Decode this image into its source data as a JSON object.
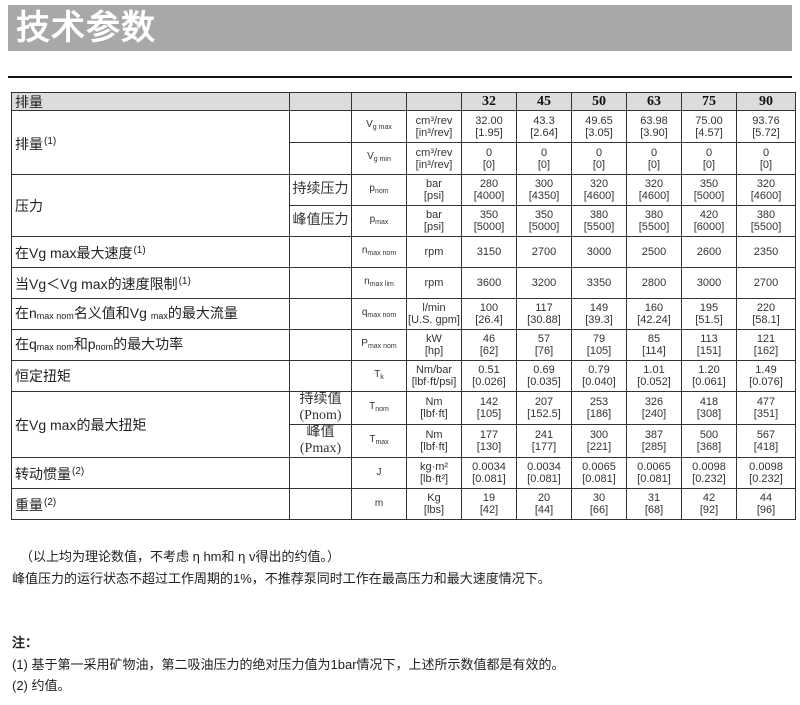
{
  "title": "技术参数",
  "table": {
    "header": {
      "label": "排量",
      "sizes": [
        "32",
        "45",
        "50",
        "63",
        "75",
        "90"
      ]
    },
    "groups": [
      {
        "label": [
          {
            "t": "排量"
          }
        ],
        "ref": "(1)",
        "rows": [
          {
            "sub": "",
            "sym": {
              "m": "V",
              "s": "g max"
            },
            "unit": [
              "cm³/rev",
              "[in³/rev]"
            ],
            "values": [
              "32.00\n[1.95]",
              "43.3\n[2.64]",
              "49.65\n[3.05]",
              "63.98\n[3.90]",
              "75.00\n[4.57]",
              "93.76\n[5.72]"
            ]
          },
          {
            "sub": "",
            "sym": {
              "m": "V",
              "s": "g min"
            },
            "unit": [
              "cm³/rev",
              "[in³/rev]"
            ],
            "values": [
              "0\n[0]",
              "0\n[0]",
              "0\n[0]",
              "0\n[0]",
              "0\n[0]",
              "0\n[0]"
            ]
          }
        ]
      },
      {
        "label": [
          {
            "t": "压力"
          }
        ],
        "ref": "",
        "rows": [
          {
            "sub": "持续压力",
            "sym": {
              "m": "p",
              "s": "nom"
            },
            "unit": [
              "bar",
              "[psi]"
            ],
            "values": [
              "280\n[4000]",
              "300\n[4350]",
              "320\n[4600]",
              "320\n[4600]",
              "350\n[5000]",
              "320\n[4600]"
            ]
          },
          {
            "sub": "峰值压力",
            "sym": {
              "m": "p",
              "s": "max"
            },
            "unit": [
              "bar",
              "[psi]"
            ],
            "values": [
              "350\n[5000]",
              "350\n[5000]",
              "380\n[5500]",
              "380\n[5500]",
              "420\n[6000]",
              "380\n[5500]"
            ]
          }
        ]
      },
      {
        "label": [
          {
            "t": "在Vg  max最大速度"
          }
        ],
        "ref": "(1)",
        "rows": [
          {
            "sub": "",
            "sym": {
              "m": "n",
              "s": "max nom"
            },
            "unit": [
              "rpm"
            ],
            "values": [
              "3150",
              "2700",
              "3000",
              "2500",
              "2600",
              "2350"
            ]
          }
        ]
      },
      {
        "label": [
          {
            "t": "当Vg＜Vg  max的速度限制"
          }
        ],
        "ref": "(1)",
        "rows": [
          {
            "sub": "",
            "sym": {
              "m": "n",
              "s": "max lim"
            },
            "unit": [
              "rpm"
            ],
            "values": [
              "3600",
              "3200",
              "3350",
              "2800",
              "3000",
              "2700"
            ]
          }
        ]
      },
      {
        "label": [
          {
            "t": "在n"
          },
          {
            "s": "max  nom"
          },
          {
            "t": "名义值和Vg "
          },
          {
            "s": "max"
          },
          {
            "t": "的最大流量"
          }
        ],
        "ref": "",
        "rows": [
          {
            "sub": "",
            "sym": {
              "m": "q",
              "s": "max nom"
            },
            "unit": [
              "l/min",
              "[U.S. gpm]"
            ],
            "values": [
              "100\n[26.4]",
              "117\n[30.88]",
              "149\n[39.3]",
              "160\n[42.24]",
              "195\n[51.5]",
              "220\n[58.1]"
            ]
          }
        ]
      },
      {
        "label": [
          {
            "t": "在q"
          },
          {
            "s": "max  nom"
          },
          {
            "t": "和p"
          },
          {
            "s": "nom"
          },
          {
            "t": "的最大功率"
          }
        ],
        "ref": "",
        "rows": [
          {
            "sub": "",
            "sym": {
              "m": "P",
              "s": "max nom"
            },
            "unit": [
              "kW",
              "[hp]"
            ],
            "values": [
              "46\n[62]",
              "57\n[76]",
              "79\n[105]",
              "85\n[114]",
              "113\n[151]",
              "121\n[162]"
            ]
          }
        ]
      },
      {
        "label": [
          {
            "t": "恒定扭矩"
          }
        ],
        "ref": "",
        "rows": [
          {
            "sub": "",
            "sym": {
              "m": "T",
              "s": "k"
            },
            "unit": [
              "Nm/bar",
              "[lbf·ft/psi]"
            ],
            "values": [
              "0.51\n[0.026]",
              "0.69\n[0.035]",
              "0.79\n[0.040]",
              "1.01\n[0.052]",
              "1.20\n[0.061]",
              "1.49\n[0.076]"
            ]
          }
        ]
      },
      {
        "label": [
          {
            "t": "在Vg  max的最大扭矩"
          }
        ],
        "ref": "",
        "rows": [
          {
            "sub": "持续值\n(Pnom)",
            "sym": {
              "m": "T",
              "s": "nom"
            },
            "unit": [
              "Nm",
              "[lbf·ft]"
            ],
            "values": [
              "142\n[105]",
              "207\n[152.5]",
              "253\n[186]",
              "326\n[240]",
              "418\n[308]",
              "477\n[351]"
            ]
          },
          {
            "sub": "峰值\n(Pmax)",
            "sym": {
              "m": "T",
              "s": "max"
            },
            "unit": [
              "Nm",
              "[lbf·ft]"
            ],
            "values": [
              "177\n[130]",
              "241\n[177]",
              "300\n[221]",
              "387\n[285]",
              "500\n[368]",
              "567\n[418]"
            ]
          }
        ]
      },
      {
        "label": [
          {
            "t": "转动惯量"
          }
        ],
        "ref": "(2)",
        "rows": [
          {
            "sub": "",
            "sym": {
              "m": "J",
              "s": ""
            },
            "unit": [
              "kg·m²",
              "[lb·ft²]"
            ],
            "values": [
              "0.0034\n[0.081]",
              "0.0034\n[0.081]",
              "0.0065\n[0.081]",
              "0.0065\n[0.081]",
              "0.0098\n[0.232]",
              "0.0098\n[0.232]"
            ]
          }
        ]
      },
      {
        "label": [
          {
            "t": "重量"
          }
        ],
        "ref": "(2)",
        "rows": [
          {
            "sub": "",
            "sym": {
              "m": "m",
              "s": ""
            },
            "unit": [
              "Kg",
              "[lbs]"
            ],
            "values": [
              "19\n[42]",
              "20\n[44]",
              "30\n[66]",
              "31\n[68]",
              "42\n[92]",
              "44\n[96]"
            ]
          }
        ]
      }
    ]
  },
  "remarks": [
    "（以上均为理论数值，不考虑 η hm和 η v得出的约值。）",
    "峰值压力的运行状态不超过工作周期的1%，不推荐泵同时工作在最高压力和最大速度情况下。"
  ],
  "notes": {
    "heading": "注：",
    "items": [
      "(1) 基于第一采用矿物油，第二吸油压力的绝对压力值为1bar情况下，上述所示数值都是有效的。",
      "(2) 约值。"
    ]
  }
}
